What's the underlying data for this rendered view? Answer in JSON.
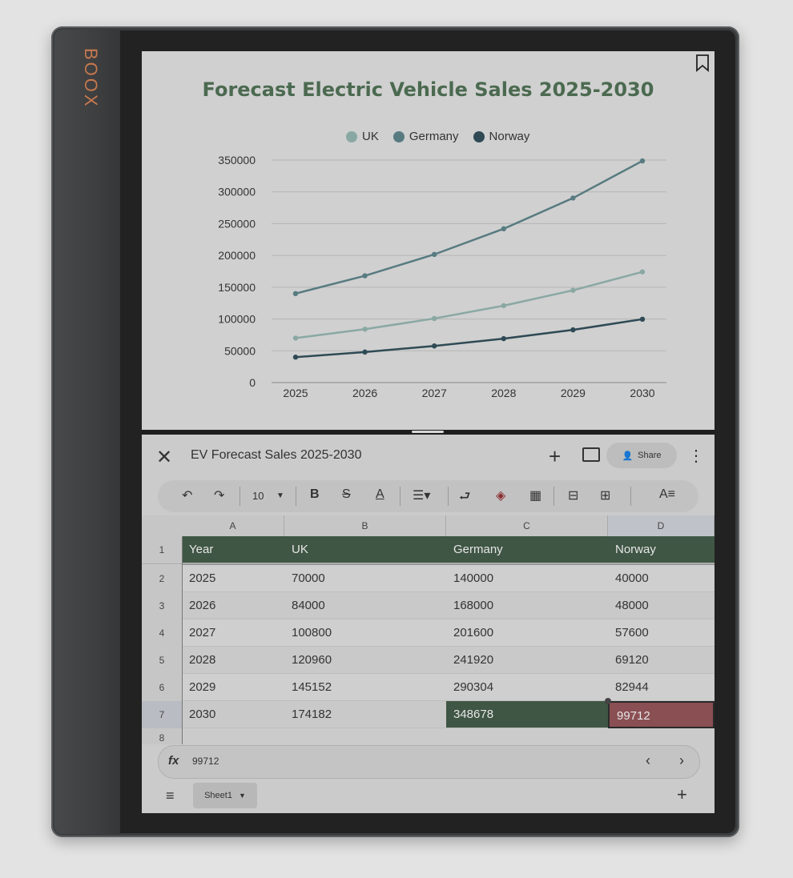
{
  "device": {
    "brand": "BOOX"
  },
  "chart": {
    "title": "Forecast Electric Vehicle Sales 2025-2030",
    "legend": [
      "UK",
      "Germany",
      "Norway"
    ]
  },
  "chart_data": {
    "type": "line",
    "title": "Forecast Electric Vehicle Sales 2025-2030",
    "xlabel": "",
    "ylabel": "",
    "x": [
      2025,
      2026,
      2027,
      2028,
      2029,
      2030
    ],
    "ylim": [
      0,
      350000
    ],
    "yticks": [
      0,
      50000,
      100000,
      150000,
      200000,
      250000,
      300000,
      350000
    ],
    "legend_position": "top",
    "grid": true,
    "series": [
      {
        "name": "UK",
        "values": [
          70000,
          84000,
          100800,
          120960,
          145152,
          174182
        ],
        "color": "#8aa8a3"
      },
      {
        "name": "Germany",
        "values": [
          140000,
          168000,
          201600,
          241920,
          290304,
          348678
        ],
        "color": "#577b80"
      },
      {
        "name": "Norway",
        "values": [
          40000,
          48000,
          57600,
          69120,
          82944,
          99712
        ],
        "color": "#2f4a55"
      }
    ]
  },
  "app": {
    "doc_title": "EV Forecast Sales 2025-2030",
    "share_label": "Share",
    "font_size": "10",
    "columns": [
      "A",
      "B",
      "C",
      "D"
    ],
    "rows": [
      "1",
      "2",
      "3",
      "4",
      "5",
      "6",
      "7",
      "8"
    ],
    "header": [
      "Year",
      "UK",
      "Germany",
      "Norway"
    ],
    "data": [
      [
        "2025",
        "70000",
        "140000",
        "40000"
      ],
      [
        "2026",
        "84000",
        "168000",
        "48000"
      ],
      [
        "2027",
        "100800",
        "201600",
        "57600"
      ],
      [
        "2028",
        "120960",
        "241920",
        "69120"
      ],
      [
        "2029",
        "145152",
        "290304",
        "82944"
      ],
      [
        "2030",
        "174182",
        "348678",
        "99712"
      ]
    ],
    "formula_value": "99712",
    "formula_label": "fx",
    "sheet_tab": "Sheet1"
  },
  "colors": {
    "accent_green": "#3f5644",
    "selected_red": "#8a4f53",
    "title_green": "#4b6a50"
  }
}
